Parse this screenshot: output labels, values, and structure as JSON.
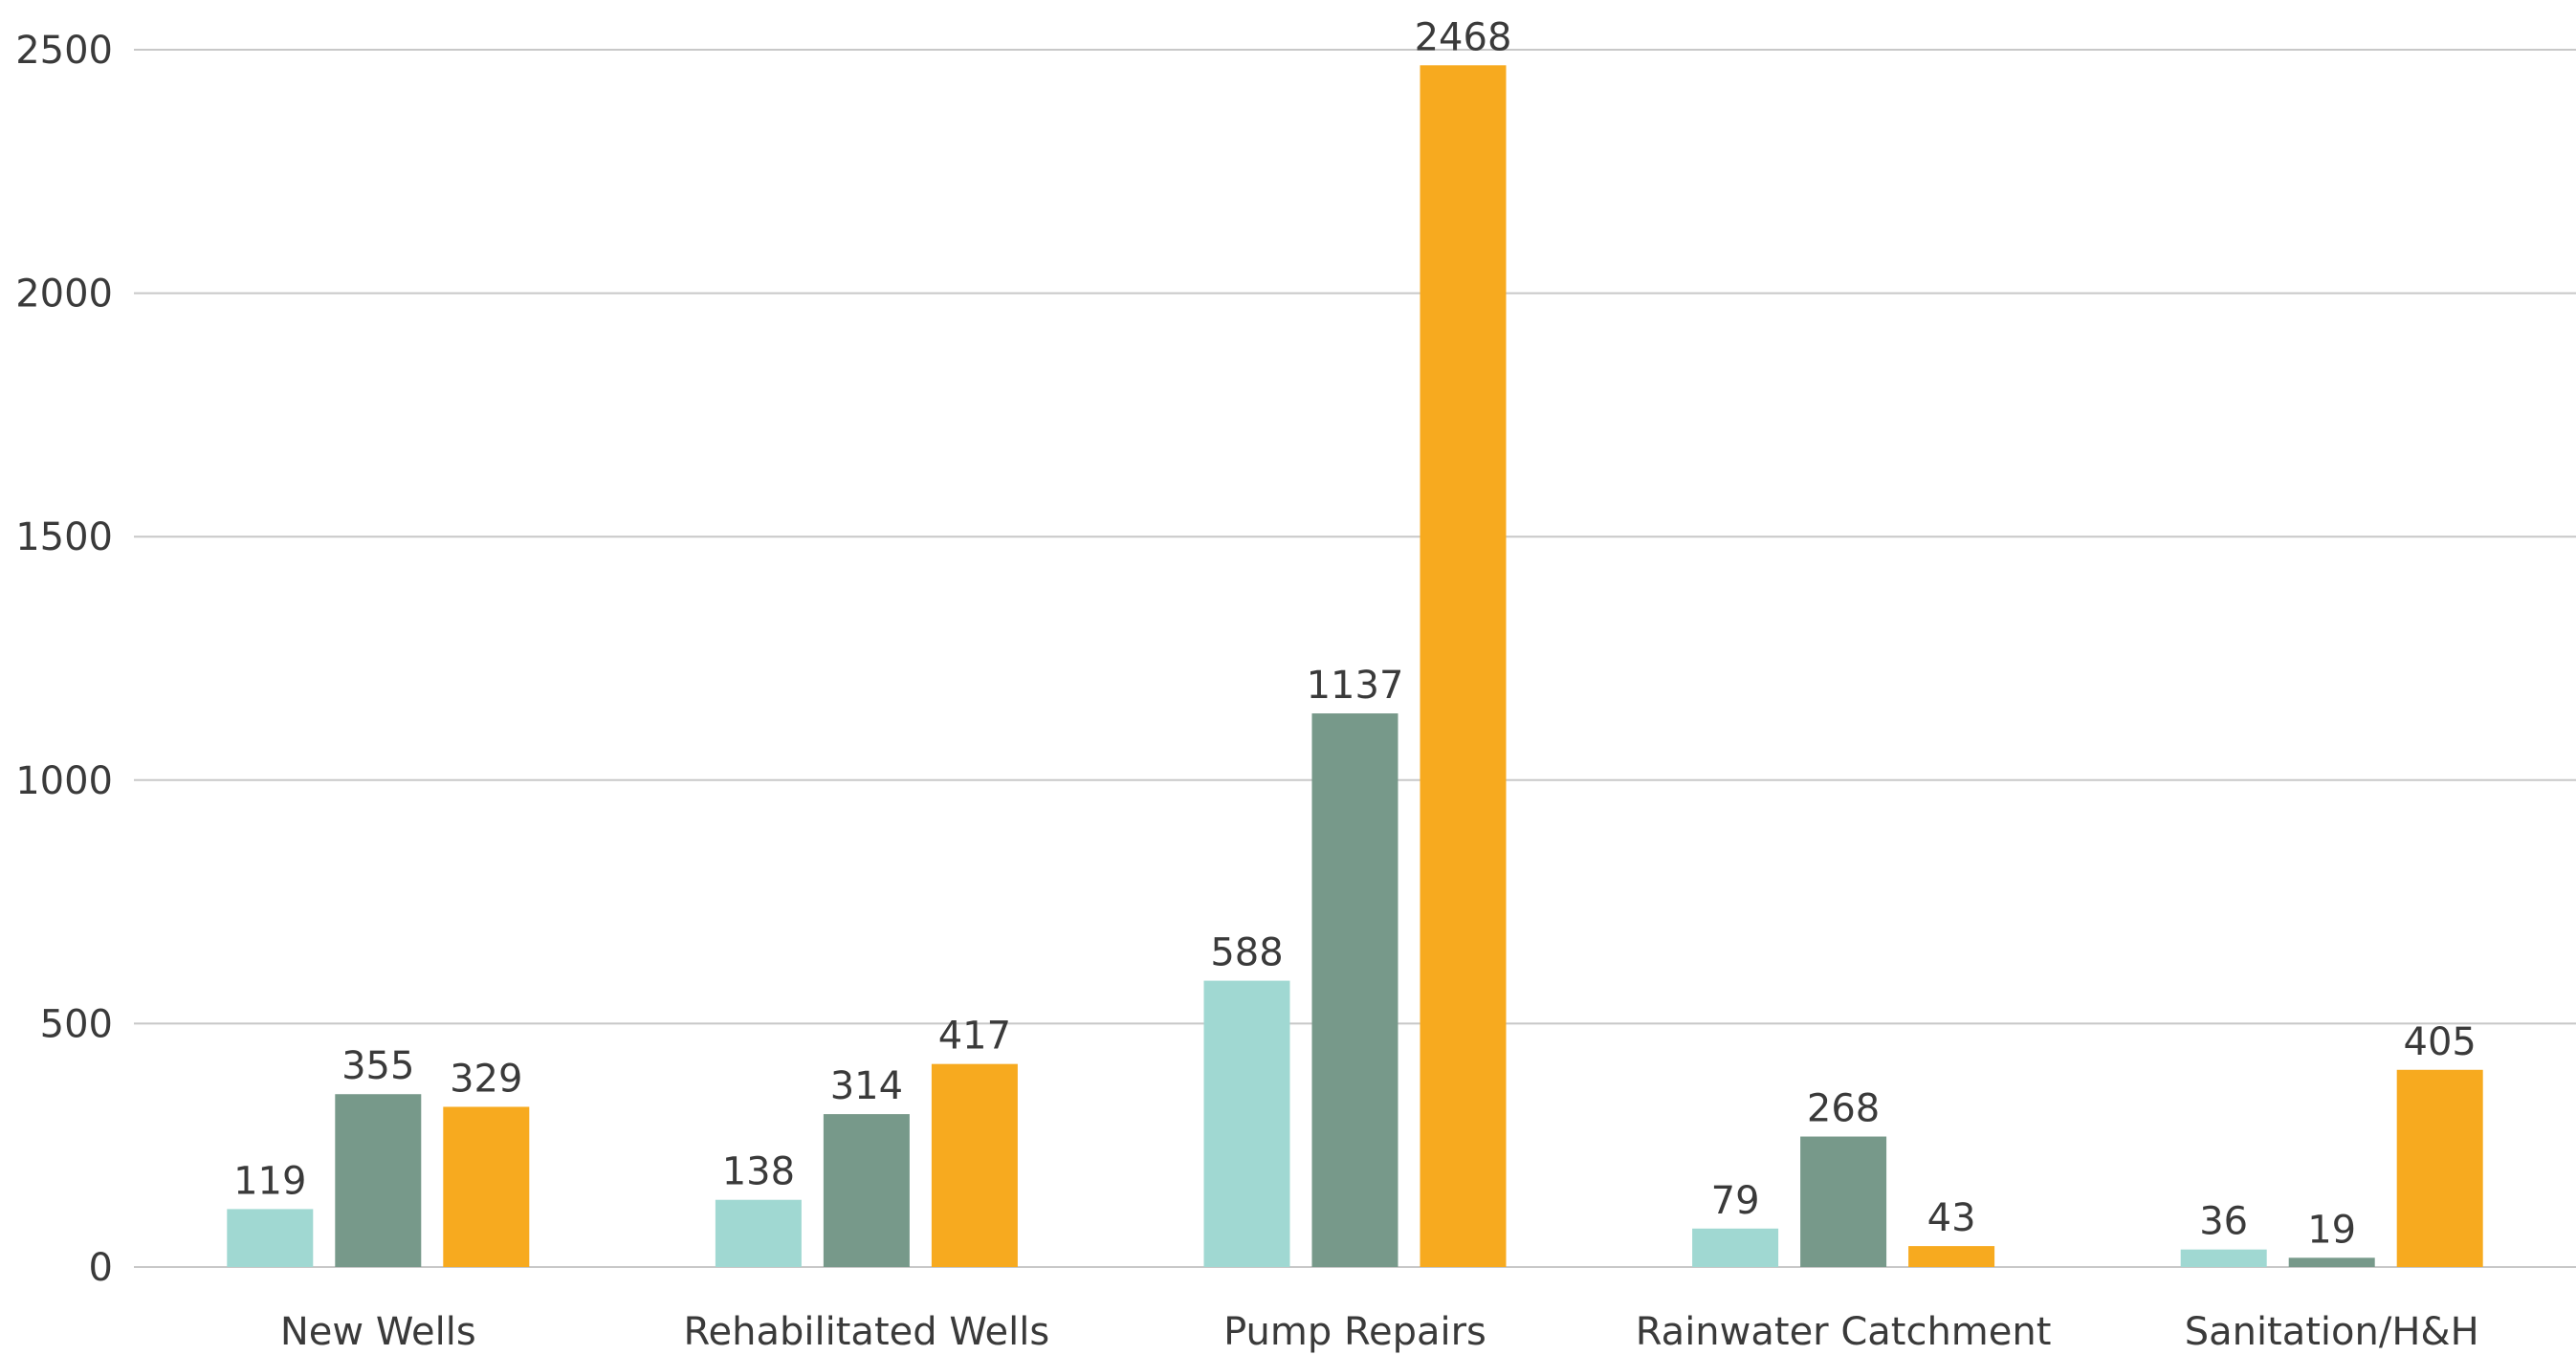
{
  "chart_data": {
    "type": "bar",
    "title": "",
    "xlabel": "",
    "ylabel": "",
    "categories": [
      "New Wells",
      "Rehabilitated Wells",
      "Pump Repairs",
      "Rainwater Catchment",
      "Sanitation/H&H"
    ],
    "series": [
      {
        "color": "#a0d8d2",
        "values": [
          119,
          138,
          588,
          79,
          36
        ]
      },
      {
        "color": "#77998a",
        "values": [
          355,
          314,
          1137,
          268,
          19
        ]
      },
      {
        "color": "#f7aa1f",
        "values": [
          329,
          417,
          2468,
          43,
          405
        ]
      }
    ],
    "ylim": [
      0,
      2500
    ],
    "yticks": [
      0,
      500,
      1000,
      1500,
      2000,
      2500
    ],
    "grid": true,
    "legend": "none",
    "data_labels": true
  }
}
